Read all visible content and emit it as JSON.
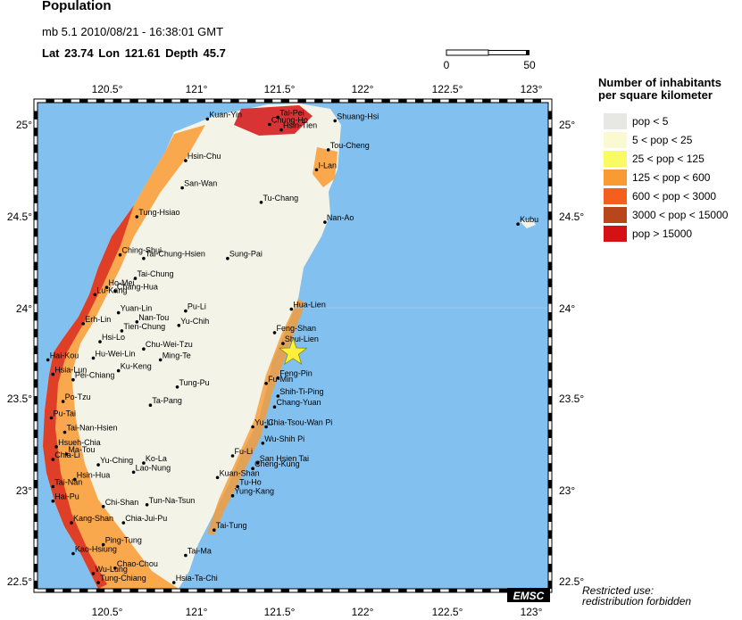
{
  "header": {
    "title": "Population",
    "event_line": "mb 5.1  2010/08/21 - 16:38:01 GMT",
    "latlon_line": "Lat 23.74    Lon 121.61    Depth  45.7"
  },
  "scale_bar": {
    "start": "0",
    "end": "50"
  },
  "axes": {
    "lon_ticks": [
      "120.5°",
      "121°",
      "121.5°",
      "122°",
      "122.5°",
      "123°"
    ],
    "lat_ticks": [
      "25°",
      "24.5°",
      "24°",
      "23.5°",
      "23°",
      "22.5°"
    ]
  },
  "epicenter": {
    "lat": 23.74,
    "lon": 121.61,
    "color": "#ffef3a"
  },
  "places": [
    {
      "name": "Kuan-Yin",
      "lon": 121.1,
      "lat": 25.03
    },
    {
      "name": "Tai-Pei",
      "lon": 121.52,
      "lat": 25.04
    },
    {
      "name": "Shuang-Hsi",
      "lon": 121.86,
      "lat": 25.02
    },
    {
      "name": "Chung-Ho",
      "lon": 121.47,
      "lat": 25.0
    },
    {
      "name": "Hsin-Tien",
      "lon": 121.54,
      "lat": 24.97
    },
    {
      "name": "Hsin-Chu",
      "lon": 120.97,
      "lat": 24.8
    },
    {
      "name": "Tou-Cheng",
      "lon": 121.82,
      "lat": 24.86
    },
    {
      "name": "I-Lan",
      "lon": 121.75,
      "lat": 24.75
    },
    {
      "name": "San-Wan",
      "lon": 120.95,
      "lat": 24.65
    },
    {
      "name": "Tu-Chang",
      "lon": 121.42,
      "lat": 24.57
    },
    {
      "name": "Tung-Hsiao",
      "lon": 120.68,
      "lat": 24.49
    },
    {
      "name": "Nan-Ao",
      "lon": 121.8,
      "lat": 24.46
    },
    {
      "name": "Kubu",
      "lon": 122.95,
      "lat": 24.45
    },
    {
      "name": "Ching-Shui",
      "lon": 120.58,
      "lat": 24.28
    },
    {
      "name": "Tai-Chung-Hsien",
      "lon": 120.72,
      "lat": 24.26
    },
    {
      "name": "Sung-Pai",
      "lon": 121.22,
      "lat": 24.26
    },
    {
      "name": "Tai-Chung",
      "lon": 120.67,
      "lat": 24.15
    },
    {
      "name": "Ho-Mei",
      "lon": 120.5,
      "lat": 24.1
    },
    {
      "name": "Chang-Hua",
      "lon": 120.55,
      "lat": 24.08
    },
    {
      "name": "Lu-Kang",
      "lon": 120.43,
      "lat": 24.06
    },
    {
      "name": "Hua-Lien",
      "lon": 121.6,
      "lat": 23.98
    },
    {
      "name": "Pu-Li",
      "lon": 120.97,
      "lat": 23.97
    },
    {
      "name": "Yuan-Lin",
      "lon": 120.57,
      "lat": 23.96
    },
    {
      "name": "Nan-Tou",
      "lon": 120.68,
      "lat": 23.91
    },
    {
      "name": "Yu-Chih",
      "lon": 120.93,
      "lat": 23.89
    },
    {
      "name": "Erh-Lin",
      "lon": 120.36,
      "lat": 23.9
    },
    {
      "name": "Tien-Chung",
      "lon": 120.59,
      "lat": 23.86
    },
    {
      "name": "Feng-Shan",
      "lon": 121.5,
      "lat": 23.85
    },
    {
      "name": "Hsi-Lo",
      "lon": 120.46,
      "lat": 23.8
    },
    {
      "name": "Shui-Lien",
      "lon": 121.55,
      "lat": 23.79
    },
    {
      "name": "Chu-Wei-Tzu",
      "lon": 120.72,
      "lat": 23.76
    },
    {
      "name": "Hai-Kou",
      "lon": 120.15,
      "lat": 23.7
    },
    {
      "name": "Hu-Wei-Lin",
      "lon": 120.42,
      "lat": 23.71
    },
    {
      "name": "Ming-Te",
      "lon": 120.82,
      "lat": 23.7
    },
    {
      "name": "Ku-Keng",
      "lon": 120.57,
      "lat": 23.64
    },
    {
      "name": "Hsia-Lun",
      "lon": 120.18,
      "lat": 23.62
    },
    {
      "name": "Pei-Chiang",
      "lon": 120.3,
      "lat": 23.59
    },
    {
      "name": "Feng-Pin",
      "lon": 121.52,
      "lat": 23.6
    },
    {
      "name": "Fu-Min",
      "lon": 121.45,
      "lat": 23.57
    },
    {
      "name": "Tung-Pu",
      "lon": 120.92,
      "lat": 23.55
    },
    {
      "name": "Shih-Ti-Ping",
      "lon": 121.52,
      "lat": 23.5
    },
    {
      "name": "Po-Tzu",
      "lon": 120.24,
      "lat": 23.47
    },
    {
      "name": "Ta-Pang",
      "lon": 120.76,
      "lat": 23.45
    },
    {
      "name": "Chang-Yuan",
      "lon": 121.5,
      "lat": 23.44
    },
    {
      "name": "Pu-Tai",
      "lon": 120.17,
      "lat": 23.38
    },
    {
      "name": "Yu-Li",
      "lon": 121.37,
      "lat": 23.33
    },
    {
      "name": "Chia-Tsou-Wan Pi",
      "lon": 121.45,
      "lat": 23.33
    },
    {
      "name": "Tai-Nan-Hsien",
      "lon": 120.25,
      "lat": 23.3
    },
    {
      "name": "Wu-Shih Pi",
      "lon": 121.43,
      "lat": 23.24
    },
    {
      "name": "Hsueh-Chia",
      "lon": 120.2,
      "lat": 23.22
    },
    {
      "name": "Ma-Tou",
      "lon": 120.26,
      "lat": 23.18
    },
    {
      "name": "Chia-Li",
      "lon": 120.18,
      "lat": 23.15
    },
    {
      "name": "Fu-Li",
      "lon": 121.25,
      "lat": 23.17
    },
    {
      "name": "San Hsien Tai",
      "lon": 121.4,
      "lat": 23.13
    },
    {
      "name": "Ko-La",
      "lon": 120.72,
      "lat": 23.13
    },
    {
      "name": "Yu-Ching",
      "lon": 120.45,
      "lat": 23.12
    },
    {
      "name": "Cheng-Kung",
      "lon": 121.37,
      "lat": 23.1
    },
    {
      "name": "Lao-Nung",
      "lon": 120.66,
      "lat": 23.08
    },
    {
      "name": "Kuan-Shan",
      "lon": 121.16,
      "lat": 23.05
    },
    {
      "name": "Hsin-Hua",
      "lon": 120.31,
      "lat": 23.04
    },
    {
      "name": "Tai-Nan",
      "lon": 120.18,
      "lat": 23.0
    },
    {
      "name": "Tu-Ho",
      "lon": 121.28,
      "lat": 23.0
    },
    {
      "name": "Yung-Kang",
      "lon": 121.25,
      "lat": 22.95
    },
    {
      "name": "Hai-Pu",
      "lon": 120.18,
      "lat": 22.92
    },
    {
      "name": "Chi-Shan",
      "lon": 120.48,
      "lat": 22.89
    },
    {
      "name": "Tun-Na-Tsun",
      "lon": 120.74,
      "lat": 22.9
    },
    {
      "name": "Kang-Shan",
      "lon": 120.29,
      "lat": 22.8
    },
    {
      "name": "Chia-Jui-Pu",
      "lon": 120.6,
      "lat": 22.8
    },
    {
      "name": "Tai-Tung",
      "lon": 121.14,
      "lat": 22.76
    },
    {
      "name": "Ping-Tung",
      "lon": 120.48,
      "lat": 22.68
    },
    {
      "name": "Kao-Hsiung",
      "lon": 120.3,
      "lat": 22.63
    },
    {
      "name": "Tai-Ma",
      "lon": 120.97,
      "lat": 22.62
    },
    {
      "name": "Chao-Chou",
      "lon": 120.55,
      "lat": 22.55
    },
    {
      "name": "Wu-Lung",
      "lon": 120.42,
      "lat": 22.52
    },
    {
      "name": "Tung-Chiang",
      "lon": 120.45,
      "lat": 22.47
    },
    {
      "name": "Hsia-Ta-Chi",
      "lon": 120.9,
      "lat": 22.47
    }
  ],
  "legend": {
    "title_line1": "Number of inhabitants",
    "title_line2": "per square kilometer",
    "items": [
      {
        "label": "pop < 5",
        "color": "#e7e8e4"
      },
      {
        "label": "5 < pop < 25",
        "color": "#faf9d2"
      },
      {
        "label": "25 < pop < 125",
        "color": "#fafa63"
      },
      {
        "label": "125 < pop < 600",
        "color": "#f99a32"
      },
      {
        "label": "600 < pop < 3000",
        "color": "#f55f1e"
      },
      {
        "label": "3000 < pop < 15000",
        "color": "#b8461a"
      },
      {
        "label": "pop > 15000",
        "color": "#d41215"
      }
    ]
  },
  "colors": {
    "sea": "#82c0ef",
    "land": "#f4f3e8"
  },
  "brand": "EMSC",
  "restricted_line1": "Restricted use:",
  "restricted_line2": "redistribution forbidden"
}
